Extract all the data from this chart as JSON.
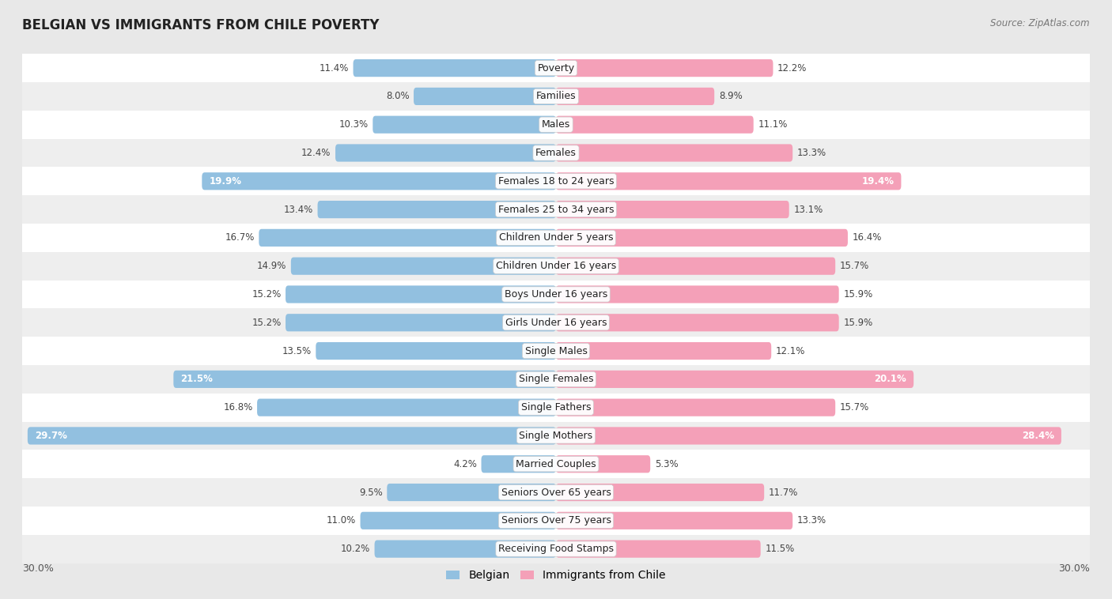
{
  "title": "BELGIAN VS IMMIGRANTS FROM CHILE POVERTY",
  "source": "Source: ZipAtlas.com",
  "categories": [
    "Poverty",
    "Families",
    "Males",
    "Females",
    "Females 18 to 24 years",
    "Females 25 to 34 years",
    "Children Under 5 years",
    "Children Under 16 years",
    "Boys Under 16 years",
    "Girls Under 16 years",
    "Single Males",
    "Single Females",
    "Single Fathers",
    "Single Mothers",
    "Married Couples",
    "Seniors Over 65 years",
    "Seniors Over 75 years",
    "Receiving Food Stamps"
  ],
  "belgian_values": [
    11.4,
    8.0,
    10.3,
    12.4,
    19.9,
    13.4,
    16.7,
    14.9,
    15.2,
    15.2,
    13.5,
    21.5,
    16.8,
    29.7,
    4.2,
    9.5,
    11.0,
    10.2
  ],
  "chile_values": [
    12.2,
    8.9,
    11.1,
    13.3,
    19.4,
    13.1,
    16.4,
    15.7,
    15.9,
    15.9,
    12.1,
    20.1,
    15.7,
    28.4,
    5.3,
    11.7,
    13.3,
    11.5
  ],
  "belgian_color": "#92c0e0",
  "chile_color": "#f4a0b8",
  "highlight_threshold": 17.0,
  "max_val": 30.0,
  "bg_color": "#e8e8e8",
  "row_bg_even": "#ffffff",
  "row_bg_odd": "#eeeeee",
  "label_fontsize": 9.0,
  "value_fontsize": 8.5,
  "title_fontsize": 12,
  "bar_height": 0.62,
  "legend_belgian": "Belgian",
  "legend_chile": "Immigrants from Chile"
}
